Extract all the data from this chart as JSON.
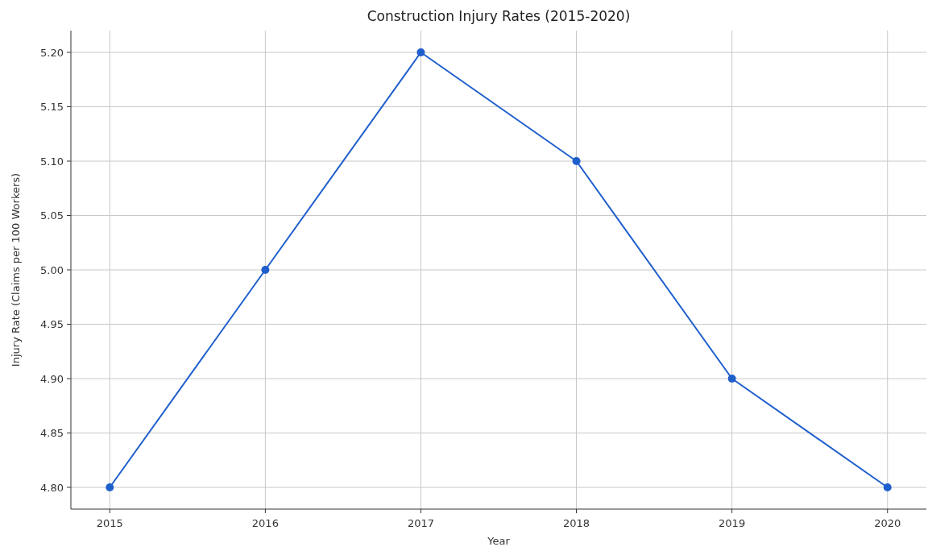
{
  "chart_data": {
    "type": "line",
    "title": "Construction Injury Rates (2015-2020)",
    "xlabel": "Year",
    "ylabel": "Injury Rate (Claims per 100 Workers)",
    "x": [
      2015,
      2016,
      2017,
      2018,
      2019,
      2020
    ],
    "series": [
      {
        "color": "#1f5fcc",
        "values": [
          4.8,
          5.0,
          5.2,
          5.1,
          4.9,
          4.8
        ]
      }
    ],
    "xlim": [
      2014.75,
      2020.25
    ],
    "xticks": [
      2015,
      2016,
      2017,
      2018,
      2019,
      2020
    ],
    "ylim": [
      4.78,
      5.22
    ],
    "yticks": [
      {
        "value": 4.8,
        "label": "4.80"
      },
      {
        "value": 4.85,
        "label": "4.85"
      },
      {
        "value": 4.9,
        "label": "4.90"
      },
      {
        "value": 4.95,
        "label": "4.95"
      },
      {
        "value": 5.0,
        "label": "5.00"
      },
      {
        "value": 5.05,
        "label": "5.05"
      },
      {
        "value": 5.1,
        "label": "5.10"
      },
      {
        "value": 5.15,
        "label": "5.15"
      },
      {
        "value": 5.2,
        "label": "5.20"
      }
    ],
    "grid": true,
    "marker": "circle",
    "line_style": "solid"
  }
}
